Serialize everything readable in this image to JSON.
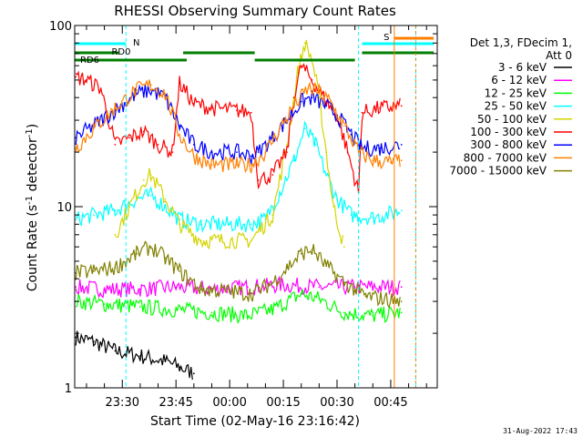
{
  "chart_data": {
    "type": "line",
    "title": "RHESSI Observing Summary Count Rates",
    "ylabel": "Count Rate (s",
    "ylabel_sup": "-1",
    "ylabel_mid": " detector",
    "ylabel_sup2": "-1",
    "ylabel_end": ")",
    "xlabel": "Start Time (02-May-16 23:16:42)",
    "footer": "31-Aug-2022 17:43",
    "y_scale": "log",
    "ylim": [
      1,
      100
    ],
    "y_ticks": [
      {
        "value": 1,
        "label": "1"
      },
      {
        "value": 10,
        "label": "10"
      },
      {
        "value": 100,
        "label": "100"
      }
    ],
    "xlim": [
      "23:16:42",
      "00:58:00"
    ],
    "x_ticks": [
      {
        "time": "23:30",
        "label": "23:30"
      },
      {
        "time": "23:45",
        "label": "23:45"
      },
      {
        "time": "00:00",
        "label": "00:00"
      },
      {
        "time": "00:15",
        "label": "00:15"
      },
      {
        "time": "00:30",
        "label": "00:30"
      },
      {
        "time": "00:45",
        "label": "00:45"
      }
    ],
    "legend": {
      "header": [
        "Det 1,3, FDecim 1,",
        "Att 0"
      ],
      "placement": "right",
      "entries": [
        {
          "label": "3 - 6 keV",
          "color": "#000000"
        },
        {
          "label": "6 - 12 keV",
          "color": "#ff00ff"
        },
        {
          "label": "12 - 25 keV",
          "color": "#00ff00"
        },
        {
          "label": "25 - 50 keV",
          "color": "#00ffff"
        },
        {
          "label": "50 - 100 keV",
          "color": "#d4d400"
        },
        {
          "label": "100 - 300 keV",
          "color": "#ff0000"
        },
        {
          "label": "300 - 800 keV",
          "color": "#0000ff"
        },
        {
          "label": "800 - 7000 keV",
          "color": "#ff8000"
        },
        {
          "label": "7000 - 15000 keV",
          "color": "#808000"
        }
      ]
    },
    "flags": [
      {
        "label": "N",
        "color": "#00ffff"
      },
      {
        "label": "RD0",
        "color": "#007f00"
      },
      {
        "label": "RD6",
        "color": "#007f00"
      },
      {
        "label": "S",
        "color": "#ff8000"
      }
    ],
    "series": [
      {
        "name": "3 - 6 keV",
        "color": "#000000",
        "points": [
          [
            "23:17",
            1.9
          ],
          [
            "23:22",
            1.8
          ],
          [
            "23:28",
            1.6
          ],
          [
            "23:35",
            1.5
          ],
          [
            "23:42",
            1.4
          ],
          [
            "23:46",
            1.3
          ],
          [
            "23:50",
            1.2
          ]
        ]
      },
      {
        "name": "6 - 12 keV",
        "color": "#ff00ff",
        "points": [
          [
            "23:17",
            3.6
          ],
          [
            "23:25",
            3.5
          ],
          [
            "23:35",
            3.5
          ],
          [
            "23:45",
            3.6
          ],
          [
            "23:55",
            3.5
          ],
          [
            "00:05",
            3.6
          ],
          [
            "00:15",
            3.7
          ],
          [
            "00:25",
            3.6
          ],
          [
            "00:35",
            3.6
          ],
          [
            "00:45",
            3.6
          ],
          [
            "00:48",
            3.6
          ]
        ]
      },
      {
        "name": "12 - 25 keV",
        "color": "#00ff00",
        "points": [
          [
            "23:17",
            3.0
          ],
          [
            "23:25",
            2.9
          ],
          [
            "23:35",
            2.8
          ],
          [
            "23:45",
            2.7
          ],
          [
            "23:55",
            2.6
          ],
          [
            "00:05",
            2.5
          ],
          [
            "00:12",
            2.7
          ],
          [
            "00:20",
            3.3
          ],
          [
            "00:25",
            3.1
          ],
          [
            "00:32",
            2.6
          ],
          [
            "00:40",
            2.5
          ],
          [
            "00:48",
            2.6
          ]
        ]
      },
      {
        "name": "25 - 50 keV",
        "color": "#00ffff",
        "points": [
          [
            "23:17",
            8.5
          ],
          [
            "23:22",
            9.0
          ],
          [
            "23:28",
            9.5
          ],
          [
            "23:34",
            11
          ],
          [
            "23:38",
            11.5
          ],
          [
            "23:42",
            10
          ],
          [
            "23:46",
            8.5
          ],
          [
            "23:52",
            8.0
          ],
          [
            "00:00",
            8.0
          ],
          [
            "00:06",
            8.0
          ],
          [
            "00:10",
            8.5
          ],
          [
            "00:14",
            12
          ],
          [
            "00:18",
            18
          ],
          [
            "00:21",
            27
          ],
          [
            "00:24",
            22
          ],
          [
            "00:27",
            15
          ],
          [
            "00:30",
            11
          ],
          [
            "00:34",
            9.0
          ],
          [
            "00:40",
            8.7
          ],
          [
            "00:48",
            9.5
          ]
        ]
      },
      {
        "name": "50 - 100 keV",
        "color": "#d4d400",
        "points": [
          [
            "23:28",
            7.0
          ],
          [
            "23:32",
            10
          ],
          [
            "23:36",
            14
          ],
          [
            "23:38",
            15
          ],
          [
            "23:42",
            11
          ],
          [
            "23:46",
            8.0
          ],
          [
            "23:52",
            6.5
          ],
          [
            "00:06",
            6.5
          ],
          [
            "00:12",
            9.0
          ],
          [
            "00:16",
            22
          ],
          [
            "00:19",
            55
          ],
          [
            "00:21",
            80
          ],
          [
            "00:23",
            65
          ],
          [
            "00:25",
            40
          ],
          [
            "00:27",
            20
          ],
          [
            "00:29",
            10
          ],
          [
            "00:32",
            6.0
          ]
        ]
      },
      {
        "name": "100 - 300 keV",
        "color": "#ff0000",
        "points": [
          [
            "23:17",
            52
          ],
          [
            "23:20",
            50
          ],
          [
            "23:24",
            45
          ],
          [
            "23:28",
            22
          ],
          [
            "23:32",
            24
          ],
          [
            "23:36",
            26
          ],
          [
            "23:40",
            22
          ],
          [
            "23:44",
            20
          ],
          [
            "23:46",
            48
          ],
          [
            "23:50",
            37
          ],
          [
            "23:55",
            35
          ],
          [
            "00:02",
            34
          ],
          [
            "00:06",
            33
          ],
          [
            "00:08",
            14
          ],
          [
            "00:12",
            15
          ],
          [
            "00:16",
            20
          ],
          [
            "00:18",
            40
          ],
          [
            "00:20",
            60
          ],
          [
            "00:23",
            50
          ],
          [
            "00:27",
            38
          ],
          [
            "00:30",
            32
          ],
          [
            "00:33",
            20
          ],
          [
            "00:36",
            12
          ],
          [
            "00:37",
            33
          ],
          [
            "00:42",
            35
          ],
          [
            "00:48",
            36
          ]
        ]
      },
      {
        "name": "300 - 800 keV",
        "color": "#0000ff",
        "points": [
          [
            "23:17",
            24
          ],
          [
            "23:22",
            28
          ],
          [
            "23:28",
            34
          ],
          [
            "23:34",
            42
          ],
          [
            "23:38",
            44
          ],
          [
            "23:42",
            40
          ],
          [
            "23:46",
            28
          ],
          [
            "23:50",
            22
          ],
          [
            "23:55",
            20
          ],
          [
            "00:02",
            20
          ],
          [
            "00:06",
            19
          ],
          [
            "00:08",
            20
          ],
          [
            "00:12",
            24
          ],
          [
            "00:16",
            30
          ],
          [
            "00:20",
            38
          ],
          [
            "00:23",
            40
          ],
          [
            "00:27",
            36
          ],
          [
            "00:30",
            32
          ],
          [
            "00:34",
            25
          ],
          [
            "00:37",
            21
          ],
          [
            "00:42",
            21
          ],
          [
            "00:48",
            22
          ]
        ]
      },
      {
        "name": "800 - 7000 keV",
        "color": "#ff8000",
        "points": [
          [
            "23:17",
            21
          ],
          [
            "23:22",
            27
          ],
          [
            "23:28",
            35
          ],
          [
            "23:34",
            44
          ],
          [
            "23:38",
            47
          ],
          [
            "23:42",
            42
          ],
          [
            "23:46",
            25
          ],
          [
            "23:50",
            19
          ],
          [
            "23:55",
            17
          ],
          [
            "00:02",
            17
          ],
          [
            "00:06",
            17
          ],
          [
            "00:10",
            20
          ],
          [
            "00:14",
            27
          ],
          [
            "00:18",
            36
          ],
          [
            "00:22",
            45
          ],
          [
            "00:25",
            43
          ],
          [
            "00:28",
            38
          ],
          [
            "00:32",
            28
          ],
          [
            "00:36",
            20
          ],
          [
            "00:40",
            18
          ],
          [
            "00:45",
            17.5
          ],
          [
            "00:48",
            18
          ]
        ]
      },
      {
        "name": "7000 - 15000 keV",
        "color": "#808000",
        "points": [
          [
            "23:17",
            4.3
          ],
          [
            "23:22",
            4.4
          ],
          [
            "23:28",
            4.6
          ],
          [
            "23:34",
            5.5
          ],
          [
            "23:38",
            6.0
          ],
          [
            "23:42",
            5.2
          ],
          [
            "23:46",
            4.4
          ],
          [
            "23:52",
            3.5
          ],
          [
            "00:00",
            3.4
          ],
          [
            "00:06",
            3.3
          ],
          [
            "00:12",
            3.8
          ],
          [
            "00:16",
            4.6
          ],
          [
            "00:20",
            5.5
          ],
          [
            "00:23",
            5.8
          ],
          [
            "00:27",
            4.7
          ],
          [
            "00:32",
            3.8
          ],
          [
            "00:38",
            3.2
          ],
          [
            "00:48",
            3.0
          ]
        ]
      }
    ]
  }
}
